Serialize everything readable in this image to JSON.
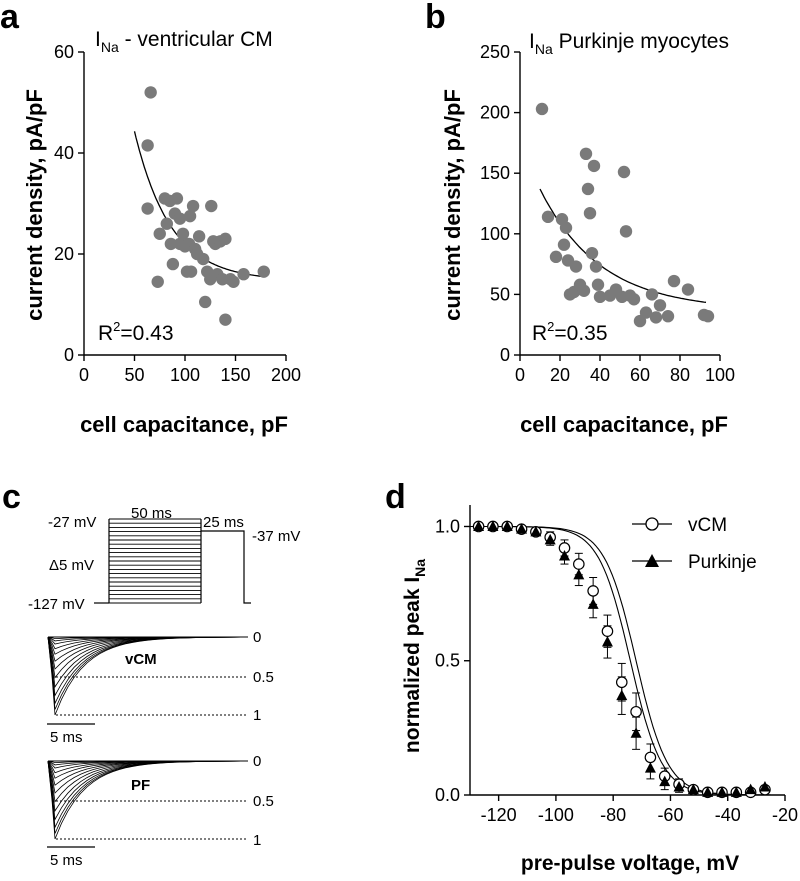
{
  "colors": {
    "ink": "#000000",
    "dot": "#7a7a7a",
    "fit": "#000000"
  },
  "chart_data": [
    {
      "panel": "a",
      "type": "scatter",
      "title_main": "I",
      "title_sub": "Na",
      "title_rest": " - ventricular  CM",
      "xlabel": "cell capacitance, pF",
      "ylabel": "current density, pA/pF",
      "xlim": [
        0,
        200
      ],
      "ylim": [
        0,
        60
      ],
      "xticks": [
        0,
        50,
        100,
        150,
        200
      ],
      "yticks": [
        0,
        20,
        40,
        60
      ],
      "r2_prefix": "R",
      "r2_exp": "2",
      "r2_value": "=0.43",
      "points": [
        [
          66,
          52
        ],
        [
          63,
          41.5
        ],
        [
          63,
          29
        ],
        [
          73,
          14.5
        ],
        [
          75,
          24
        ],
        [
          80,
          31
        ],
        [
          82,
          26
        ],
        [
          85,
          30.5
        ],
        [
          86,
          22
        ],
        [
          88,
          18
        ],
        [
          90,
          28
        ],
        [
          92,
          31
        ],
        [
          95,
          22
        ],
        [
          95,
          27
        ],
        [
          98,
          24
        ],
        [
          100,
          21.5
        ],
        [
          102,
          16.5
        ],
        [
          104,
          22
        ],
        [
          105,
          27.5
        ],
        [
          106,
          16.5
        ],
        [
          108,
          29.5
        ],
        [
          110,
          21
        ],
        [
          112,
          20
        ],
        [
          114,
          23.5
        ],
        [
          118,
          19
        ],
        [
          120,
          10.5
        ],
        [
          122,
          16.5
        ],
        [
          125,
          15
        ],
        [
          126,
          29.5
        ],
        [
          128,
          22.5
        ],
        [
          130,
          22
        ],
        [
          132,
          16
        ],
        [
          135,
          22.5
        ],
        [
          137,
          15
        ],
        [
          140,
          7
        ],
        [
          140,
          23
        ],
        [
          145,
          15
        ],
        [
          148,
          14.5
        ],
        [
          158,
          16
        ],
        [
          178,
          16.5
        ]
      ],
      "fit": {
        "x0": 50,
        "x1": 180,
        "c": 14.7,
        "a": 120,
        "k": 0.028
      }
    },
    {
      "panel": "b",
      "type": "scatter",
      "title_main": "I",
      "title_sub": "Na",
      "title_rest": " Purkinje  myocytes",
      "xlabel": "cell capacitance, pF",
      "ylabel": "current density, pA/pF",
      "xlim": [
        0,
        100
      ],
      "ylim": [
        0,
        250
      ],
      "xticks": [
        0,
        20,
        40,
        60,
        80,
        100
      ],
      "yticks": [
        0,
        50,
        100,
        150,
        200,
        250
      ],
      "r2_prefix": "R",
      "r2_exp": "2",
      "r2_value": "=0.35",
      "points": [
        [
          11,
          203
        ],
        [
          14,
          114
        ],
        [
          18,
          81
        ],
        [
          21,
          112
        ],
        [
          22,
          91
        ],
        [
          23,
          105
        ],
        [
          24,
          78
        ],
        [
          25,
          50
        ],
        [
          27,
          52
        ],
        [
          28,
          73
        ],
        [
          30,
          58
        ],
        [
          32,
          53
        ],
        [
          33,
          166
        ],
        [
          34,
          137
        ],
        [
          35,
          117
        ],
        [
          36,
          84
        ],
        [
          37,
          156
        ],
        [
          38,
          73
        ],
        [
          39,
          58
        ],
        [
          40,
          48
        ],
        [
          45,
          49
        ],
        [
          48,
          54
        ],
        [
          51,
          48
        ],
        [
          52,
          151
        ],
        [
          53,
          102
        ],
        [
          55,
          49
        ],
        [
          57,
          46
        ],
        [
          60,
          28
        ],
        [
          63,
          35
        ],
        [
          66,
          50
        ],
        [
          68,
          31
        ],
        [
          70,
          41
        ],
        [
          74,
          32
        ],
        [
          77,
          61
        ],
        [
          84,
          54
        ],
        [
          92,
          33
        ],
        [
          94,
          32
        ]
      ],
      "fit": {
        "x0": 10,
        "x1": 93,
        "c": 37,
        "a": 139,
        "k": 0.033
      }
    },
    {
      "panel": "d",
      "type": "line",
      "xlabel": "pre-pulse voltage, mV",
      "ylabel_main": "normalized peak I",
      "ylabel_sub": "Na",
      "xlim": [
        -130,
        -20
      ],
      "ylim": [
        0,
        1.08
      ],
      "xticks": [
        -120,
        -100,
        -80,
        -60,
        -40,
        -20
      ],
      "yticks": [
        0.0,
        0.5,
        1.0
      ],
      "ytick_labels": [
        "0.0",
        "0.5",
        "1.0"
      ],
      "x": [
        -127,
        -122,
        -117,
        -112,
        -107,
        -102,
        -97,
        -92,
        -87,
        -82,
        -77,
        -72,
        -67,
        -62,
        -57,
        -52,
        -47,
        -42,
        -37,
        -32,
        -27
      ],
      "series": [
        {
          "name": "vCM",
          "marker": "open-circle",
          "v_half": -72,
          "slope": 5.5,
          "values": [
            1.0,
            1.0,
            1.0,
            0.99,
            0.98,
            0.96,
            0.92,
            0.86,
            0.76,
            0.61,
            0.42,
            0.31,
            0.14,
            0.07,
            0.04,
            0.02,
            0.01,
            0.01,
            0.01,
            0.01,
            0.02
          ],
          "errors": [
            0.01,
            0.01,
            0.01,
            0.01,
            0.01,
            0.02,
            0.03,
            0.04,
            0.05,
            0.06,
            0.07,
            0.07,
            0.05,
            0.03,
            0.02,
            0.01,
            0.01,
            0.01,
            0.01,
            0.01,
            0.01
          ]
        },
        {
          "name": "Purkinje",
          "marker": "filled-triangle",
          "v_half": -74,
          "slope": 5.5,
          "values": [
            1.0,
            1.0,
            1.0,
            0.99,
            0.98,
            0.95,
            0.89,
            0.82,
            0.71,
            0.57,
            0.37,
            0.23,
            0.1,
            0.05,
            0.03,
            0.02,
            0.01,
            0.01,
            0.01,
            0.02,
            0.03
          ],
          "errors": [
            0.01,
            0.01,
            0.01,
            0.01,
            0.01,
            0.02,
            0.03,
            0.04,
            0.05,
            0.06,
            0.07,
            0.06,
            0.04,
            0.03,
            0.02,
            0.01,
            0.01,
            0.01,
            0.01,
            0.01,
            0.01
          ]
        }
      ]
    }
  ],
  "panel_c": {
    "panel": "c",
    "protocol": {
      "v_top": "-27 mV",
      "v_step": "Δ5 mV",
      "v_bottom": "-127 mV",
      "v_hold": "-37 mV",
      "dur_1": "50 ms",
      "dur_2": "25 ms",
      "steps": 21
    },
    "traces": [
      {
        "label": "vCM",
        "scalebar": "5 ms",
        "levels": [
          "0",
          "0.5",
          "1"
        ]
      },
      {
        "label": "PF",
        "scalebar": "5 ms",
        "levels": [
          "0",
          "0.5",
          "1"
        ]
      }
    ]
  }
}
